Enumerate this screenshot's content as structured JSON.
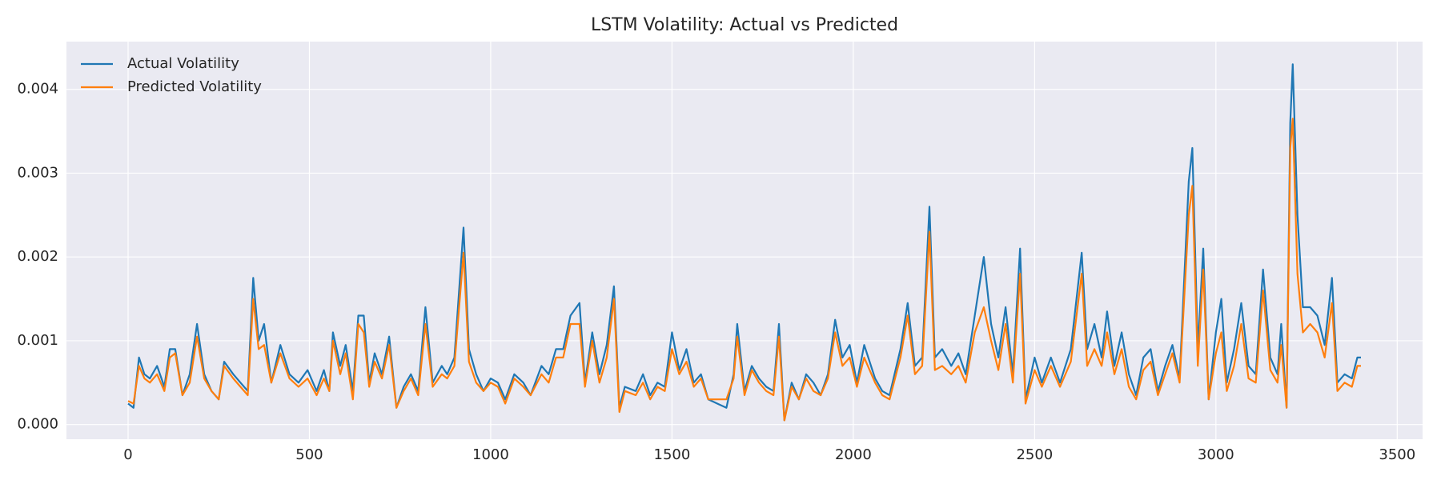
{
  "chart_data": {
    "type": "line",
    "title": "LSTM Volatility: Actual vs Predicted",
    "x": [
      0,
      15,
      30,
      45,
      60,
      80,
      100,
      115,
      130,
      150,
      170,
      190,
      210,
      230,
      250,
      265,
      290,
      310,
      330,
      345,
      360,
      375,
      395,
      420,
      445,
      470,
      495,
      520,
      540,
      555,
      565,
      585,
      600,
      620,
      635,
      650,
      665,
      680,
      700,
      720,
      740,
      760,
      780,
      800,
      820,
      840,
      865,
      880,
      900,
      925,
      940,
      960,
      980,
      1000,
      1020,
      1040,
      1065,
      1090,
      1110,
      1140,
      1160,
      1180,
      1200,
      1220,
      1245,
      1260,
      1280,
      1300,
      1320,
      1340,
      1355,
      1370,
      1400,
      1420,
      1440,
      1460,
      1480,
      1500,
      1520,
      1540,
      1560,
      1580,
      1600,
      1625,
      1650,
      1670,
      1680,
      1700,
      1720,
      1740,
      1760,
      1780,
      1795,
      1810,
      1830,
      1850,
      1870,
      1890,
      1910,
      1930,
      1950,
      1970,
      1990,
      2010,
      2030,
      2060,
      2080,
      2100,
      2130,
      2150,
      2170,
      2190,
      2210,
      2225,
      2245,
      2270,
      2290,
      2310,
      2335,
      2360,
      2380,
      2400,
      2420,
      2440,
      2460,
      2475,
      2500,
      2520,
      2545,
      2570,
      2600,
      2630,
      2645,
      2665,
      2685,
      2700,
      2720,
      2740,
      2760,
      2780,
      2800,
      2820,
      2840,
      2860,
      2880,
      2900,
      2925,
      2935,
      2950,
      2965,
      2980,
      3000,
      3015,
      3030,
      3050,
      3070,
      3090,
      3110,
      3130,
      3150,
      3170,
      3180,
      3195,
      3205,
      3212,
      3225,
      3240,
      3260,
      3280,
      3300,
      3320,
      3335,
      3355,
      3375,
      3390,
      3400
    ],
    "series": [
      {
        "name": "Actual Volatility",
        "color": "#1f77b4",
        "values": [
          0.00025,
          0.0002,
          0.0008,
          0.0006,
          0.00055,
          0.0007,
          0.00045,
          0.0009,
          0.0009,
          0.00035,
          0.0006,
          0.0012,
          0.0006,
          0.0004,
          0.0003,
          0.00075,
          0.0006,
          0.0005,
          0.0004,
          0.00175,
          0.001,
          0.0012,
          0.0005,
          0.00095,
          0.0006,
          0.0005,
          0.00065,
          0.0004,
          0.00065,
          0.0004,
          0.0011,
          0.0007,
          0.00095,
          0.0004,
          0.0013,
          0.0013,
          0.0005,
          0.00085,
          0.0006,
          0.00105,
          0.0002,
          0.00045,
          0.0006,
          0.0004,
          0.0014,
          0.0005,
          0.0007,
          0.0006,
          0.0008,
          0.00235,
          0.0009,
          0.0006,
          0.0004,
          0.00055,
          0.0005,
          0.0003,
          0.0006,
          0.0005,
          0.00035,
          0.0007,
          0.0006,
          0.0009,
          0.0009,
          0.0013,
          0.00145,
          0.0005,
          0.0011,
          0.0006,
          0.00095,
          0.00165,
          0.0002,
          0.00045,
          0.0004,
          0.0006,
          0.00035,
          0.0005,
          0.00045,
          0.0011,
          0.00065,
          0.0009,
          0.0005,
          0.0006,
          0.0003,
          0.00025,
          0.0002,
          0.0006,
          0.0012,
          0.0004,
          0.0007,
          0.00055,
          0.00045,
          0.0004,
          0.0012,
          5e-05,
          0.0005,
          0.0003,
          0.0006,
          0.0005,
          0.00035,
          0.0006,
          0.00125,
          0.0008,
          0.00095,
          0.0005,
          0.00095,
          0.00055,
          0.0004,
          0.00035,
          0.0009,
          0.00145,
          0.0007,
          0.0008,
          0.0026,
          0.0008,
          0.0009,
          0.0007,
          0.00085,
          0.0006,
          0.0013,
          0.002,
          0.0012,
          0.0008,
          0.0014,
          0.0006,
          0.0021,
          0.0003,
          0.0008,
          0.0005,
          0.0008,
          0.0005,
          0.0009,
          0.00205,
          0.0009,
          0.0012,
          0.0008,
          0.00135,
          0.0007,
          0.0011,
          0.0006,
          0.00035,
          0.0008,
          0.0009,
          0.0004,
          0.0007,
          0.00095,
          0.00055,
          0.0029,
          0.0033,
          0.0009,
          0.0021,
          0.0003,
          0.0011,
          0.0015,
          0.0005,
          0.0009,
          0.00145,
          0.0007,
          0.0006,
          0.00185,
          0.0008,
          0.0006,
          0.0012,
          0.0002,
          0.0036,
          0.0043,
          0.0025,
          0.0014,
          0.0014,
          0.0013,
          0.00095,
          0.00175,
          0.0005,
          0.0006,
          0.00055,
          0.0008,
          0.0008
        ]
      },
      {
        "name": "Predicted Volatility",
        "color": "#ff7f0e",
        "values": [
          0.00028,
          0.00025,
          0.0007,
          0.00055,
          0.0005,
          0.0006,
          0.0004,
          0.0008,
          0.00085,
          0.00035,
          0.0005,
          0.00105,
          0.00055,
          0.0004,
          0.0003,
          0.0007,
          0.00055,
          0.00045,
          0.00035,
          0.0015,
          0.0009,
          0.00095,
          0.0005,
          0.00085,
          0.00055,
          0.00045,
          0.00055,
          0.00035,
          0.00055,
          0.0004,
          0.001,
          0.0006,
          0.00085,
          0.0003,
          0.0012,
          0.0011,
          0.00045,
          0.00075,
          0.00055,
          0.00095,
          0.0002,
          0.0004,
          0.00055,
          0.00035,
          0.0012,
          0.00045,
          0.0006,
          0.00055,
          0.0007,
          0.00205,
          0.00075,
          0.0005,
          0.0004,
          0.0005,
          0.00045,
          0.00025,
          0.00055,
          0.00045,
          0.00035,
          0.0006,
          0.0005,
          0.0008,
          0.0008,
          0.0012,
          0.0012,
          0.00045,
          0.001,
          0.0005,
          0.0008,
          0.0015,
          0.00015,
          0.0004,
          0.00035,
          0.0005,
          0.0003,
          0.00045,
          0.0004,
          0.0009,
          0.0006,
          0.00075,
          0.00045,
          0.00055,
          0.0003,
          0.0003,
          0.0003,
          0.00055,
          0.00105,
          0.00035,
          0.00065,
          0.0005,
          0.0004,
          0.00035,
          0.00105,
          5e-05,
          0.00045,
          0.0003,
          0.00055,
          0.0004,
          0.00035,
          0.00055,
          0.0011,
          0.0007,
          0.0008,
          0.00045,
          0.0008,
          0.0005,
          0.00035,
          0.0003,
          0.0008,
          0.0013,
          0.0006,
          0.0007,
          0.0023,
          0.00065,
          0.0007,
          0.0006,
          0.0007,
          0.0005,
          0.0011,
          0.0014,
          0.001,
          0.00065,
          0.0012,
          0.0005,
          0.0018,
          0.00025,
          0.00065,
          0.00045,
          0.0007,
          0.00045,
          0.00075,
          0.0018,
          0.0007,
          0.0009,
          0.0007,
          0.0011,
          0.0006,
          0.0009,
          0.00045,
          0.0003,
          0.00065,
          0.00075,
          0.00035,
          0.0006,
          0.00085,
          0.0005,
          0.0025,
          0.00285,
          0.0007,
          0.00185,
          0.0003,
          0.00085,
          0.0011,
          0.0004,
          0.0007,
          0.0012,
          0.00055,
          0.0005,
          0.0016,
          0.00065,
          0.0005,
          0.00095,
          0.0002,
          0.0033,
          0.00365,
          0.0018,
          0.0011,
          0.0012,
          0.0011,
          0.0008,
          0.00145,
          0.0004,
          0.0005,
          0.00045,
          0.0007,
          0.0007
        ]
      }
    ],
    "xlim": [
      -170,
      3570
    ],
    "xticks": [
      0,
      500,
      1000,
      1500,
      2000,
      2500,
      3000,
      3500
    ],
    "ylim": [
      -0.000175,
      0.00457
    ],
    "yticks": [
      {
        "value": 0,
        "label": "0.000"
      },
      0.001,
      0.002,
      0.003,
      0.004
    ],
    "grid": true,
    "legend": "upper left"
  }
}
